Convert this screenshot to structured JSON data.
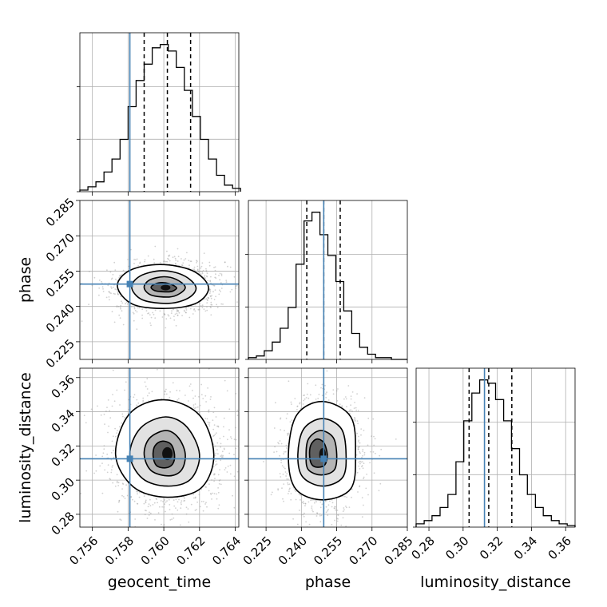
{
  "chart_data": {
    "type": "corner",
    "parameters": [
      "geocent_time",
      "phase",
      "luminosity_distance"
    ],
    "truth_color": "#4682b4",
    "grid": true,
    "variables": [
      {
        "name": "geocent_time",
        "label": "geocent_time",
        "range": [
          0.7553,
          0.7642
        ],
        "ticks": [
          0.756,
          0.758,
          0.76,
          0.762,
          0.764
        ],
        "tick_labels": [
          "0.756",
          "0.758",
          "0.760",
          "0.762",
          "0.764"
        ],
        "truth": 0.7581,
        "quantiles": [
          0.7589,
          0.7602,
          0.7615
        ],
        "hist_bins": [
          0.7553,
          0.75575,
          0.7562,
          0.75665,
          0.7571,
          0.75755,
          0.758,
          0.75845,
          0.7589,
          0.75935,
          0.7598,
          0.76025,
          0.7607,
          0.76115,
          0.7616,
          0.76205,
          0.7625,
          0.76295,
          0.7634,
          0.76385,
          0.7643
        ],
        "hist_counts": [
          1,
          3,
          6,
          12,
          20,
          32,
          52,
          68,
          78,
          88,
          90,
          86,
          76,
          62,
          46,
          32,
          20,
          10,
          4,
          2
        ]
      },
      {
        "name": "phase",
        "label": "phase",
        "range": [
          0.2175,
          0.285
        ],
        "ticks": [
          0.225,
          0.24,
          0.255,
          0.27,
          0.285
        ],
        "tick_labels": [
          "0.225",
          "0.240",
          "0.255",
          "0.270",
          "0.285"
        ],
        "truth": 0.2495,
        "quantiles": [
          0.2423,
          0.2495,
          0.2565
        ],
        "hist_bins": [
          0.2175,
          0.22088,
          0.22425,
          0.22763,
          0.231,
          0.23438,
          0.23775,
          0.24113,
          0.2445,
          0.24788,
          0.25125,
          0.25463,
          0.258,
          0.26138,
          0.26475,
          0.26813,
          0.2715,
          0.27488,
          0.27825,
          0.28163,
          0.285
        ],
        "hist_counts": [
          1,
          2,
          5,
          10,
          18,
          30,
          55,
          80,
          85,
          72,
          60,
          45,
          28,
          15,
          7,
          3,
          1,
          1,
          0,
          0
        ]
      },
      {
        "name": "luminosity_distance",
        "label": "luminosity_distance",
        "range": [
          0.2725,
          0.3655
        ],
        "ticks": [
          0.28,
          0.3,
          0.32,
          0.34,
          0.36
        ],
        "tick_labels": [
          "0.28",
          "0.30",
          "0.32",
          "0.34",
          "0.36"
        ],
        "truth": 0.3125,
        "quantiles": [
          0.3035,
          0.315,
          0.3285
        ],
        "hist_bins": [
          0.2725,
          0.2772,
          0.2818,
          0.2865,
          0.2911,
          0.2958,
          0.3004,
          0.3051,
          0.3097,
          0.3144,
          0.319,
          0.3237,
          0.3283,
          0.333,
          0.3376,
          0.3423,
          0.3469,
          0.3516,
          0.3562,
          0.3609,
          0.3655
        ],
        "hist_counts": [
          2,
          4,
          7,
          12,
          20,
          40,
          65,
          82,
          90,
          88,
          78,
          65,
          48,
          32,
          20,
          12,
          7,
          4,
          2,
          1
        ]
      }
    ],
    "pairs": [
      {
        "x": "geocent_time",
        "y": "phase",
        "center": [
          0.7601,
          0.248
        ],
        "contours": [
          [
            [
              0.7625,
              0.2483
            ],
            [
              0.7616,
              0.2552
            ],
            [
              0.7598,
              0.2578
            ],
            [
              0.7581,
              0.2553
            ],
            [
              0.7574,
              0.2485
            ],
            [
              0.7583,
              0.2408
            ],
            [
              0.7603,
              0.2392
            ],
            [
              0.7619,
              0.2417
            ]
          ],
          [
            [
              0.7618,
              0.2482
            ],
            [
              0.7611,
              0.2532
            ],
            [
              0.7599,
              0.2552
            ],
            [
              0.7587,
              0.253
            ],
            [
              0.7582,
              0.2482
            ],
            [
              0.7588,
              0.2428
            ],
            [
              0.7603,
              0.2413
            ],
            [
              0.7614,
              0.2437
            ]
          ],
          [
            [
              0.7612,
              0.2483
            ],
            [
              0.7607,
              0.2515
            ],
            [
              0.76,
              0.2526
            ],
            [
              0.7592,
              0.2512
            ],
            [
              0.7589,
              0.248
            ],
            [
              0.7593,
              0.2448
            ],
            [
              0.7603,
              0.244
            ],
            [
              0.7609,
              0.2455
            ]
          ],
          [
            [
              0.7607,
              0.2481
            ],
            [
              0.7603,
              0.2497
            ],
            [
              0.7598,
              0.2501
            ],
            [
              0.7594,
              0.2491
            ],
            [
              0.7593,
              0.2478
            ],
            [
              0.7596,
              0.2465
            ],
            [
              0.7603,
              0.2462
            ],
            [
              0.7606,
              0.2469
            ]
          ]
        ]
      },
      {
        "x": "geocent_time",
        "y": "luminosity_distance",
        "center": [
          0.7602,
          0.3155
        ],
        "contours": [
          [
            [
              0.7628,
              0.315
            ],
            [
              0.762,
              0.338
            ],
            [
              0.76,
              0.347
            ],
            [
              0.7581,
              0.339
            ],
            [
              0.7573,
              0.315
            ],
            [
              0.7583,
              0.296
            ],
            [
              0.7602,
              0.29
            ],
            [
              0.7621,
              0.2955
            ]
          ],
          [
            [
              0.762,
              0.315
            ],
            [
              0.7613,
              0.331
            ],
            [
              0.7601,
              0.337
            ],
            [
              0.7587,
              0.3305
            ],
            [
              0.7581,
              0.315
            ],
            [
              0.7588,
              0.301
            ],
            [
              0.7602,
              0.2965
            ],
            [
              0.7615,
              0.3005
            ]
          ],
          [
            [
              0.7612,
              0.3155
            ],
            [
              0.7608,
              0.325
            ],
            [
              0.7601,
              0.329
            ],
            [
              0.7592,
              0.3245
            ],
            [
              0.7589,
              0.315
            ],
            [
              0.7593,
              0.3055
            ],
            [
              0.7603,
              0.3025
            ],
            [
              0.761,
              0.306
            ]
          ],
          [
            [
              0.7606,
              0.315
            ],
            [
              0.7604,
              0.321
            ],
            [
              0.7599,
              0.3228
            ],
            [
              0.7595,
              0.32
            ],
            [
              0.7594,
              0.314
            ],
            [
              0.7596,
              0.3085
            ],
            [
              0.7601,
              0.3072
            ],
            [
              0.7605,
              0.3095
            ]
          ]
        ]
      },
      {
        "x": "phase",
        "y": "luminosity_distance",
        "center": [
          0.249,
          0.315
        ],
        "contours": [
          [
            [
              0.263,
              0.315
            ],
            [
              0.261,
              0.337
            ],
            [
              0.249,
              0.346
            ],
            [
              0.238,
              0.338
            ],
            [
              0.2345,
              0.315
            ],
            [
              0.2375,
              0.295
            ],
            [
              0.249,
              0.2885
            ],
            [
              0.261,
              0.295
            ]
          ],
          [
            [
              0.259,
              0.315
            ],
            [
              0.257,
              0.33
            ],
            [
              0.249,
              0.336
            ],
            [
              0.241,
              0.33
            ],
            [
              0.2385,
              0.315
            ],
            [
              0.2405,
              0.302
            ],
            [
              0.249,
              0.2965
            ],
            [
              0.2575,
              0.3015
            ]
          ],
          [
            [
              0.255,
              0.315
            ],
            [
              0.2535,
              0.325
            ],
            [
              0.248,
              0.329
            ],
            [
              0.243,
              0.324
            ],
            [
              0.242,
              0.314
            ],
            [
              0.243,
              0.306
            ],
            [
              0.2485,
              0.303
            ],
            [
              0.254,
              0.306
            ]
          ],
          [
            [
              0.251,
              0.315
            ],
            [
              0.2495,
              0.322
            ],
            [
              0.2465,
              0.324
            ],
            [
              0.244,
              0.3205
            ],
            [
              0.2435,
              0.314
            ],
            [
              0.2445,
              0.309
            ],
            [
              0.247,
              0.3075
            ],
            [
              0.25,
              0.309
            ]
          ]
        ]
      }
    ]
  }
}
